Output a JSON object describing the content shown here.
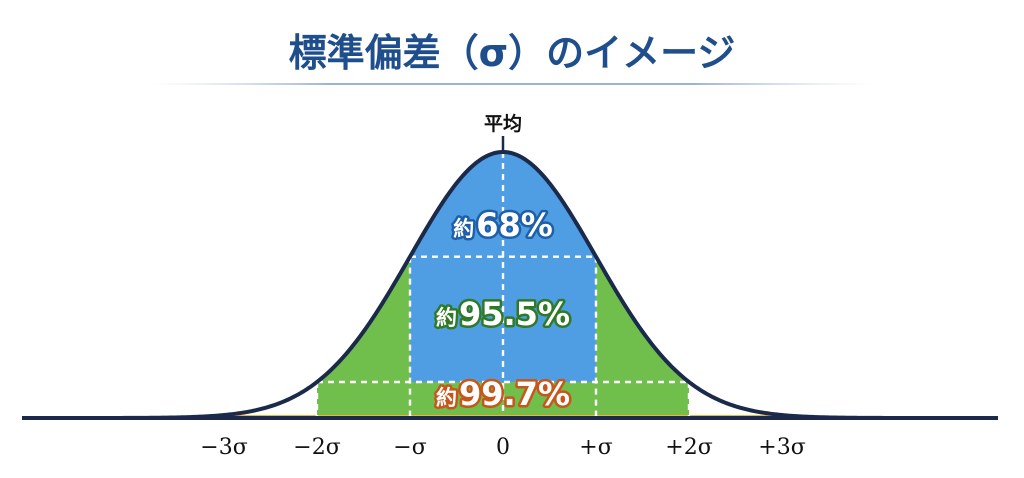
{
  "title": "標準偏差（σ）のイメージ",
  "mean_label": "平均",
  "bands": [
    {
      "prefix": "約",
      "value": "68%",
      "range_sigma": 1,
      "color": "#4f9de3",
      "outline": "#1d5fa8"
    },
    {
      "prefix": "約",
      "value": "95.5%",
      "range_sigma": 2,
      "color": "#70be4c",
      "outline": "#2f7a26"
    },
    {
      "prefix": "約",
      "value": "99.7%",
      "range_sigma": 3,
      "color": "#f7b03e",
      "outline": "#c8561a"
    }
  ],
  "tail_color": "#f08a38",
  "curve_color": "#1b2a4a",
  "tick_labels": [
    {
      "sigma": -3,
      "text": "−3σ"
    },
    {
      "sigma": -2,
      "text": "−2σ"
    },
    {
      "sigma": -1,
      "text": "−σ"
    },
    {
      "sigma": 0,
      "text": "0"
    },
    {
      "sigma": 1,
      "text": "+σ"
    },
    {
      "sigma": 2,
      "text": "+2σ"
    },
    {
      "sigma": 3,
      "text": "+3σ"
    }
  ]
}
